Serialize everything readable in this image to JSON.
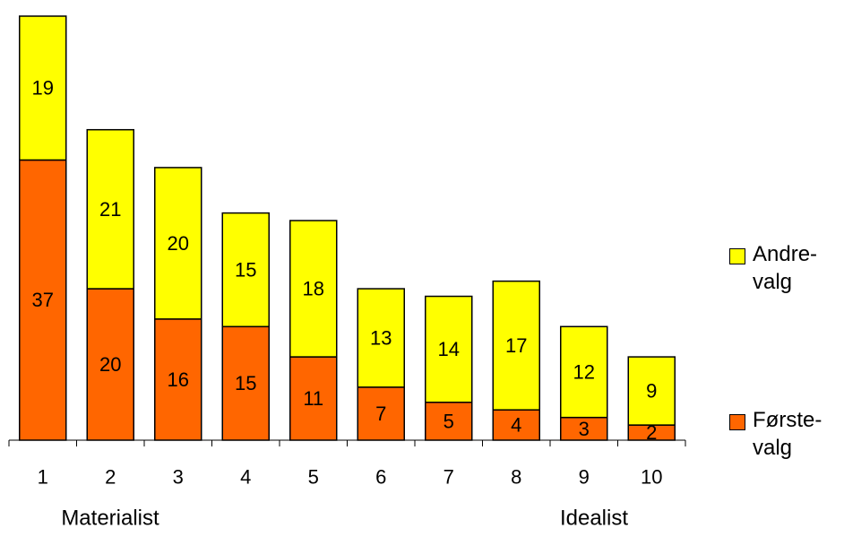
{
  "chart_data": {
    "type": "bar",
    "stacked": true,
    "categories": [
      "1",
      "2",
      "3",
      "4",
      "5",
      "6",
      "7",
      "8",
      "9",
      "10"
    ],
    "series": [
      {
        "name": "Førstevalg",
        "values": [
          37,
          20,
          16,
          15,
          11,
          7,
          5,
          4,
          3,
          2
        ],
        "color": "#ff6600"
      },
      {
        "name": "Andrevalg",
        "values": [
          19,
          21,
          20,
          15,
          18,
          13,
          14,
          17,
          12,
          9
        ],
        "color": "#ffff00"
      }
    ],
    "legend_labels": {
      "second": [
        "Andre-",
        "valg"
      ],
      "first": [
        "Første-",
        "valg"
      ]
    },
    "legend_position": "right",
    "axis_annotations": {
      "left": "Materialist",
      "right": "Idealist"
    },
    "ylim": [
      0,
      56
    ],
    "grid": false
  }
}
